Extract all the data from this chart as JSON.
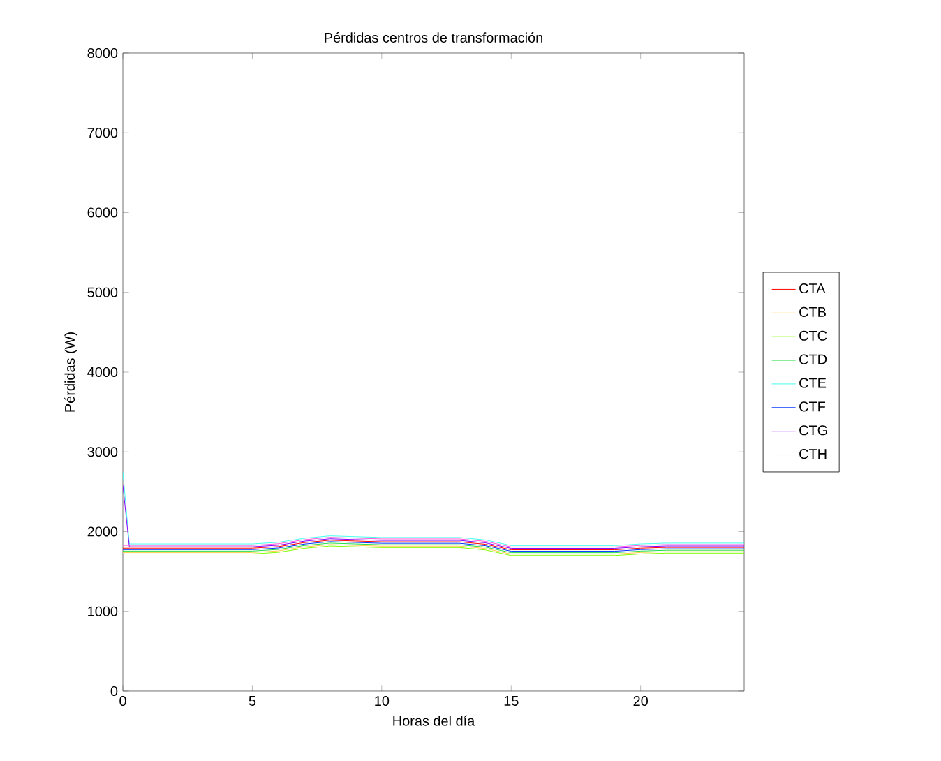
{
  "chart_data": {
    "type": "line",
    "title": "Pérdidas centros de transformación",
    "xlabel": "Horas del día",
    "ylabel": "Pérdidas (W)",
    "x": [
      0,
      0.25,
      1,
      2,
      3,
      4,
      5,
      6,
      7,
      8,
      9,
      10,
      11,
      12,
      13,
      14,
      15,
      16,
      17,
      18,
      19,
      20,
      21,
      22,
      23,
      24
    ],
    "series": [
      {
        "name": "CTA",
        "color": "#ff0000",
        "values": [
          1792,
          1792,
          1792,
          1792,
          1792,
          1792,
          1792,
          1812,
          1862,
          1892,
          1882,
          1872,
          1872,
          1872,
          1872,
          1842,
          1772,
          1772,
          1772,
          1772,
          1772,
          1792,
          1802,
          1802,
          1802,
          1802
        ]
      },
      {
        "name": "CTB",
        "color": "#ffcc44",
        "values": [
          1738,
          1738,
          1738,
          1738,
          1738,
          1738,
          1738,
          1758,
          1808,
          1838,
          1828,
          1818,
          1818,
          1818,
          1818,
          1788,
          1718,
          1718,
          1718,
          1718,
          1718,
          1738,
          1748,
          1748,
          1748,
          1748
        ]
      },
      {
        "name": "CTC",
        "color": "#80ff00",
        "values": [
          1720,
          1720,
          1720,
          1720,
          1720,
          1720,
          1720,
          1740,
          1790,
          1820,
          1810,
          1800,
          1800,
          1800,
          1800,
          1770,
          1700,
          1700,
          1700,
          1700,
          1700,
          1720,
          1730,
          1730,
          1730,
          1730
        ]
      },
      {
        "name": "CTD",
        "color": "#22dd44",
        "values": [
          1756,
          1756,
          1756,
          1756,
          1756,
          1756,
          1756,
          1776,
          1826,
          1856,
          1846,
          1836,
          1836,
          1836,
          1836,
          1806,
          1736,
          1736,
          1736,
          1736,
          1736,
          1756,
          1766,
          1766,
          1766,
          1766
        ]
      },
      {
        "name": "CTE",
        "color": "#44ffee",
        "values": [
          2750,
          1846,
          1846,
          1846,
          1846,
          1846,
          1846,
          1866,
          1916,
          1946,
          1936,
          1926,
          1926,
          1926,
          1926,
          1896,
          1826,
          1826,
          1826,
          1826,
          1826,
          1846,
          1856,
          1856,
          1856,
          1856
        ]
      },
      {
        "name": "CTF",
        "color": "#0033ff",
        "values": [
          1774,
          1774,
          1774,
          1774,
          1774,
          1774,
          1774,
          1794,
          1844,
          1874,
          1864,
          1854,
          1854,
          1854,
          1854,
          1824,
          1754,
          1754,
          1754,
          1754,
          1754,
          1774,
          1784,
          1784,
          1784,
          1784
        ]
      },
      {
        "name": "CTG",
        "color": "#8800ff",
        "values": [
          2580,
          1810,
          1810,
          1810,
          1810,
          1810,
          1810,
          1830,
          1880,
          1910,
          1900,
          1890,
          1890,
          1890,
          1890,
          1860,
          1790,
          1790,
          1790,
          1790,
          1790,
          1810,
          1820,
          1820,
          1820,
          1820
        ]
      },
      {
        "name": "CTH",
        "color": "#ff55dd",
        "values": [
          1828,
          1828,
          1828,
          1828,
          1828,
          1828,
          1828,
          1848,
          1898,
          1928,
          1918,
          1908,
          1908,
          1908,
          1908,
          1878,
          1808,
          1808,
          1808,
          1808,
          1808,
          1828,
          1838,
          1838,
          1838,
          1838
        ]
      }
    ],
    "xlim": [
      0,
      24
    ],
    "xticks": [
      0,
      5,
      10,
      15,
      20
    ],
    "ylim": [
      0,
      8000
    ],
    "yticks": [
      0,
      1000,
      2000,
      3000,
      4000,
      5000,
      6000,
      7000,
      8000
    ],
    "grid": false,
    "legend": "right",
    "marker": "none",
    "line_style": "solid"
  }
}
